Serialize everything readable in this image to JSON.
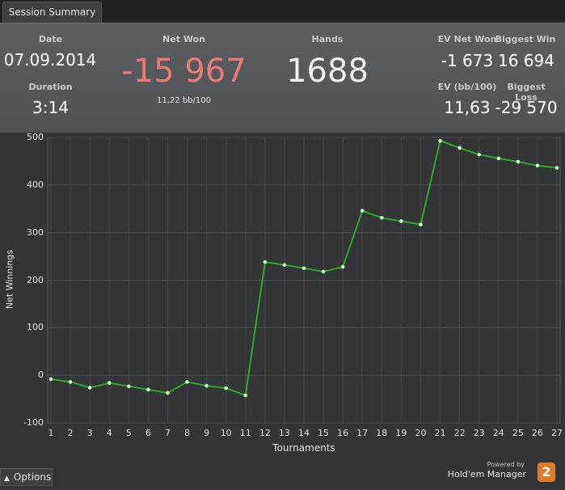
{
  "tabs": [
    {
      "label": "Session Summary"
    }
  ],
  "summary": {
    "date_label": "Date",
    "date_value": "07.09.2014",
    "duration_label": "Duration",
    "duration_value": "3:14",
    "net_won_label": "Net Won",
    "net_won_value": "-15 967",
    "net_won_sub": "11,22 bb/100",
    "hands_label": "Hands",
    "hands_value": "1688",
    "ev_net_won_label": "EV Net Won",
    "ev_net_won_value": "-1 673",
    "biggest_win_label": "Biggest Win",
    "biggest_win_value": "16 694",
    "ev_bb_label": "EV (bb/100)",
    "ev_bb_value": "11,63",
    "biggest_loss_label": "Biggest Loss",
    "biggest_loss_value": "-29 570"
  },
  "colors": {
    "net_won": "#e87a7a",
    "line": "#2ea82e",
    "marker": "#c8ffc8"
  },
  "chart_data": {
    "type": "line",
    "xlabel": "Tournaments",
    "ylabel": "Net Winnings",
    "ylim": [
      -100,
      500
    ],
    "yticks": [
      -100,
      0,
      100,
      200,
      300,
      400,
      500
    ],
    "x": [
      1,
      2,
      3,
      4,
      5,
      6,
      7,
      8,
      9,
      10,
      11,
      12,
      13,
      14,
      15,
      16,
      17,
      18,
      19,
      20,
      21,
      22,
      23,
      24,
      25,
      26,
      27
    ],
    "series": [
      {
        "values": [
          -8,
          -14,
          -26,
          -16,
          -23,
          -30,
          -37,
          -14,
          -22,
          -27,
          -42,
          238,
          232,
          225,
          218,
          228,
          346,
          331,
          324,
          317,
          493,
          478,
          464,
          456,
          449,
          441,
          436
        ]
      }
    ],
    "grid": true
  },
  "footer": {
    "options_label": "Options",
    "powered_by": "Powered by",
    "brand_name": "Hold'em Manager",
    "brand_version": "2"
  }
}
